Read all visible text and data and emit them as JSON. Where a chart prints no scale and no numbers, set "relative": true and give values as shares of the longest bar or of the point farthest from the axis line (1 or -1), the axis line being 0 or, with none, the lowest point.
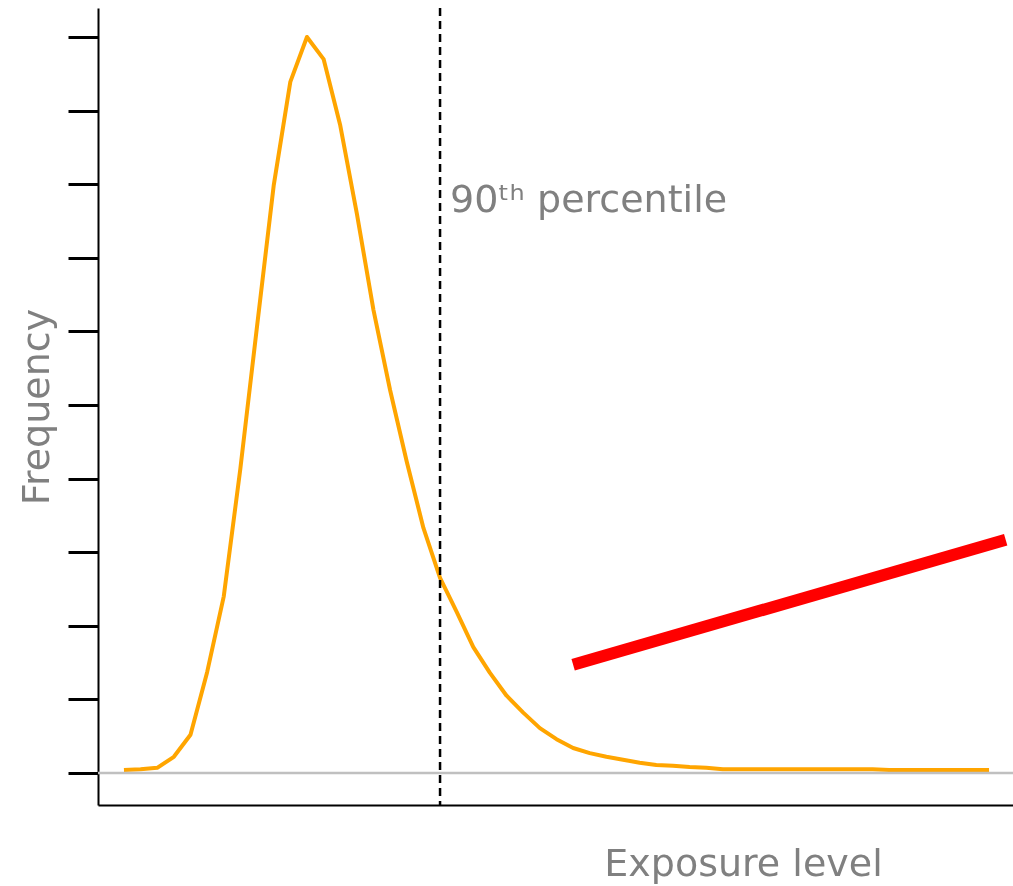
{
  "chart_data": {
    "type": "line",
    "xlabel": "Exposure level",
    "ylabel": "Frequency",
    "relative": true,
    "categories": [
      null,
      null,
      null,
      null,
      null,
      null,
      null,
      null,
      null,
      null,
      null,
      null,
      null,
      null,
      null,
      null,
      null,
      null,
      null,
      null,
      null,
      null,
      null,
      null,
      null,
      null,
      null,
      null,
      null,
      null,
      null,
      null,
      null,
      null,
      null,
      null,
      null,
      null,
      null,
      null,
      null,
      null,
      null,
      null,
      null,
      null,
      null,
      null,
      null,
      null,
      null,
      null,
      null,
      null
    ],
    "series": [
      {
        "color": "#ffa500",
        "values": [
          0.004,
          0.005,
          0.007,
          0.022,
          0.052,
          0.137,
          0.24,
          0.414,
          0.607,
          0.798,
          0.939,
          1.0,
          0.97,
          0.88,
          0.76,
          0.629,
          0.52,
          0.423,
          0.333,
          0.265,
          0.219,
          0.171,
          0.136,
          0.105,
          0.082,
          0.061,
          0.046,
          0.034,
          0.027,
          0.022,
          0.018,
          0.014,
          0.011,
          0.01,
          0.008,
          0.007,
          0.005,
          0.005,
          0.005,
          0.005,
          0.005,
          0.005,
          0.005,
          0.005,
          0.005,
          0.005,
          0.004,
          0.004,
          0.004,
          0.004,
          0.004,
          0.004,
          0.004,
          null
        ]
      },
      {
        "color": "#ff0000",
        "values": [
          null,
          null,
          null,
          null,
          null,
          null,
          null,
          null,
          null,
          null,
          null,
          null,
          null,
          null,
          null,
          null,
          null,
          null,
          null,
          null,
          null,
          null,
          null,
          null,
          null,
          null,
          null,
          0.147,
          null,
          null,
          null,
          null,
          null,
          null,
          null,
          null,
          null,
          null,
          null,
          null,
          null,
          null,
          null,
          null,
          null,
          null,
          null,
          null,
          null,
          null,
          null,
          null,
          null,
          0.317
        ]
      }
    ],
    "ref_lines": [
      {
        "axis": "y",
        "value": 0,
        "color": "#c0c0c0",
        "line_style": "solid"
      }
    ],
    "annotations": [
      "90ᵗʰ percentile"
    ]
  }
}
